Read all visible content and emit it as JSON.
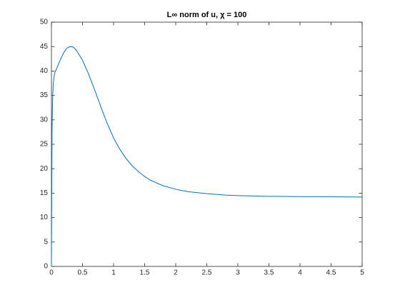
{
  "chart_data": {
    "type": "line",
    "title": "L∞ norm of u, χ = 100",
    "x": [
      0,
      0.005,
      0.01,
      0.02,
      0.03,
      0.05,
      0.1,
      0.15,
      0.2,
      0.25,
      0.3,
      0.35,
      0.4,
      0.5,
      0.6,
      0.7,
      0.8,
      0.9,
      1.0,
      1.1,
      1.2,
      1.3,
      1.4,
      1.5,
      1.6,
      1.8,
      2.0,
      2.2,
      2.5,
      2.8,
      3.0,
      3.5,
      4.0,
      4.5,
      5.0
    ],
    "series": [
      {
        "color": "#0072bd",
        "values": [
          0,
          15,
          28,
          35,
          37.5,
          39.5,
          41,
          42.5,
          43.8,
          44.7,
          45,
          44.9,
          44.3,
          42.2,
          39.3,
          36,
          32.5,
          29.2,
          26.3,
          24,
          22.1,
          20.6,
          19.4,
          18.4,
          17.6,
          16.5,
          15.8,
          15.3,
          14.9,
          14.6,
          14.5,
          14.35,
          14.3,
          14.25,
          14.2
        ]
      }
    ],
    "xlim": [
      0,
      5
    ],
    "xticks": [
      0,
      0.5,
      1,
      1.5,
      2,
      2.5,
      3,
      3.5,
      4,
      4.5,
      5
    ],
    "ylim": [
      0,
      50
    ],
    "yticks": [
      0,
      5,
      10,
      15,
      20,
      25,
      30,
      35,
      40,
      45,
      50
    ],
    "grid": false
  }
}
